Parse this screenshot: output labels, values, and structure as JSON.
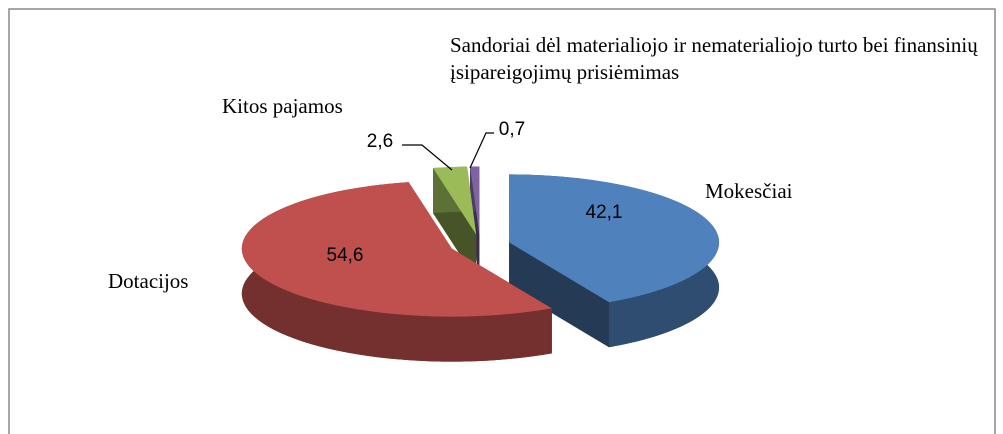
{
  "chart_data": {
    "type": "pie",
    "categories": [
      "Mokesčiai",
      "Dotacijos",
      "Kitos pajamos",
      "Sandoriai dėl materialiojo ir nematerialiojo turto bei finansinių įsipareigojimų prisiėmimas"
    ],
    "values": [
      42.1,
      54.6,
      2.6,
      0.7
    ],
    "value_labels": [
      "42,1",
      "54,6",
      "2,6",
      "0,7"
    ],
    "colors": [
      "#4f81bd",
      "#c0504d",
      "#9bbb59",
      "#8064a2"
    ]
  }
}
